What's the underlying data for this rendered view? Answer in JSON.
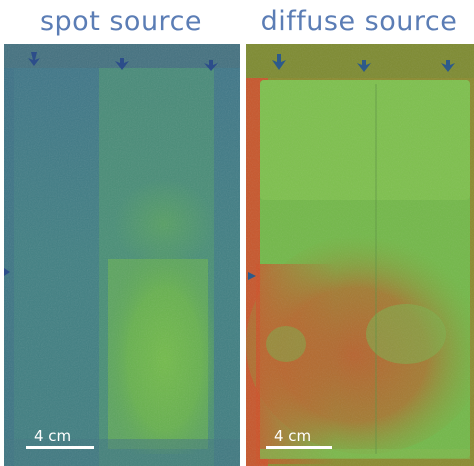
{
  "panels": [
    {
      "title": "spot source",
      "scale_label": "4 cm"
    },
    {
      "title": "diffuse source",
      "scale_label": "4 cm"
    }
  ],
  "colors": {
    "title_text": "#5b7db5",
    "spot_base": "#3b7a83",
    "spot_bright": "#67b64a",
    "diffuse_green": "#6cbd4a",
    "diffuse_red": "#c65d2e"
  }
}
